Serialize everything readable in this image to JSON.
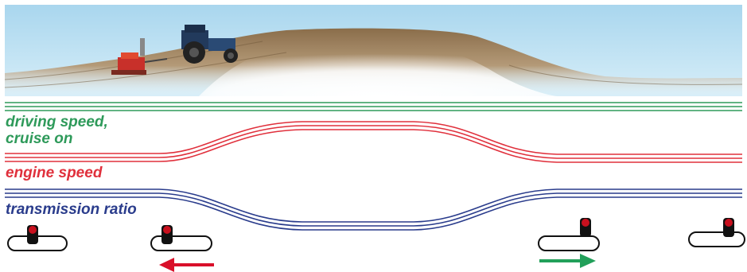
{
  "labels": {
    "driving_speed_line1": "driving speed,",
    "driving_speed_line2": "cruise on",
    "engine_speed": "engine speed",
    "transmission_ratio": "transmission ratio"
  },
  "colors": {
    "driving_speed": "#2e9a5a",
    "engine_speed": "#e0303c",
    "transmission_ratio": "#2a3c8c",
    "lever_knob": "#c8101e",
    "arrow_left": "#d9102a",
    "arrow_right": "#22a05a",
    "sky": "#b9dff2",
    "soil": "#8a6d4a"
  },
  "scene": {
    "tractor_icon": "tractor-icon",
    "implement_icon": "implement-icon"
  },
  "levers": [
    {
      "name": "lever-1",
      "icon": "shift-lever-icon",
      "arrow": "none"
    },
    {
      "name": "lever-2",
      "icon": "shift-lever-icon",
      "arrow": "left"
    },
    {
      "name": "lever-3",
      "icon": "shift-lever-icon",
      "arrow": "right"
    },
    {
      "name": "lever-4",
      "icon": "shift-lever-icon",
      "arrow": "none"
    }
  ]
}
